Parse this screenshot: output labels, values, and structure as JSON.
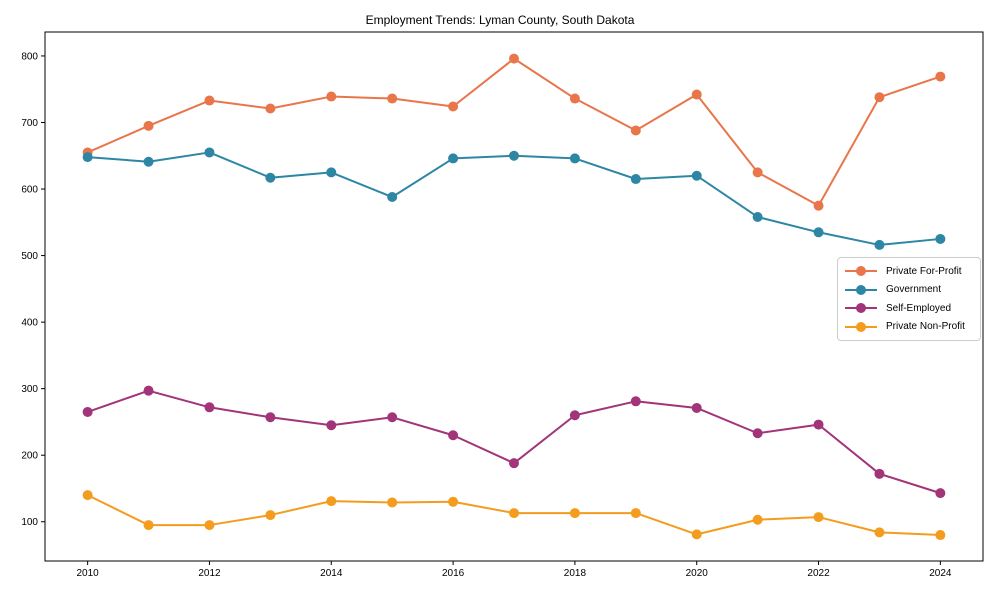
{
  "chart_data": {
    "type": "line",
    "title": "Employment Trends: Lyman County, South Dakota",
    "xlabel": "",
    "ylabel": "",
    "x": [
      2010,
      2011,
      2012,
      2013,
      2014,
      2015,
      2016,
      2017,
      2018,
      2019,
      2020,
      2021,
      2022,
      2023,
      2024
    ],
    "series": [
      {
        "name": "Private For-Profit",
        "color": "#e8764a",
        "values": [
          655,
          695,
          733,
          721,
          739,
          736,
          724,
          796,
          736,
          688,
          742,
          625,
          575,
          738,
          769
        ]
      },
      {
        "name": "Government",
        "color": "#2e86a5",
        "values": [
          648,
          641,
          655,
          617,
          625,
          588,
          646,
          650,
          646,
          615,
          620,
          558,
          535,
          516,
          525
        ]
      },
      {
        "name": "Self-Employed",
        "color": "#a23479",
        "values": [
          265,
          297,
          272,
          257,
          245,
          257,
          230,
          188,
          260,
          281,
          271,
          233,
          246,
          172,
          143
        ]
      },
      {
        "name": "Private Non-Profit",
        "color": "#f39c1d",
        "values": [
          140,
          95,
          95,
          110,
          131,
          129,
          130,
          113,
          113,
          113,
          81,
          103,
          107,
          84,
          80
        ]
      }
    ],
    "xticks": [
      2010,
      2012,
      2014,
      2016,
      2018,
      2020,
      2022,
      2024
    ],
    "yticks": [
      100,
      200,
      300,
      400,
      500,
      600,
      700,
      800
    ],
    "xlim": [
      2009.3,
      2024.7
    ],
    "ylim": [
      41,
      836
    ],
    "grid": false,
    "legend_position": "center right",
    "marker": "circle",
    "marker_radius": 5,
    "line_width": 2,
    "axis_color": "#000000"
  }
}
